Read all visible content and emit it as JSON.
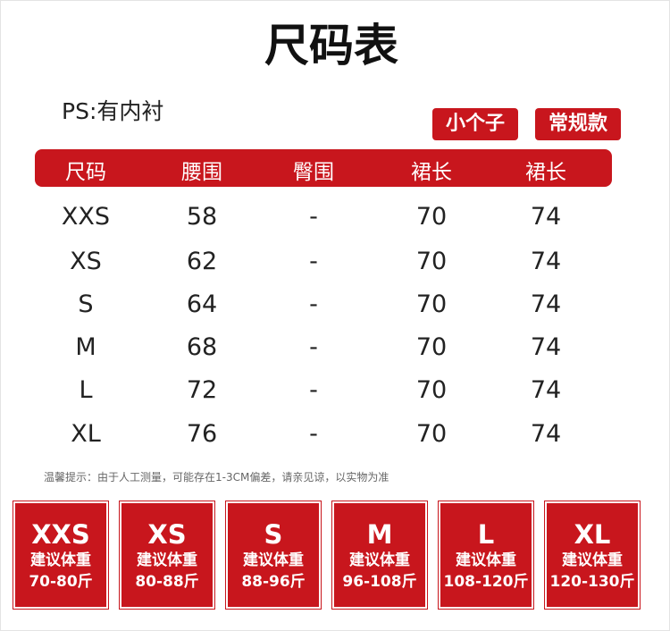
{
  "title": "尺码表",
  "note": "PS:有内衬",
  "tags": [
    "小个子",
    "常规款"
  ],
  "table": {
    "header": [
      "尺码",
      "腰围",
      "臀围",
      "裙长",
      "裙长"
    ],
    "rows": [
      [
        "XXS",
        "58",
        "-",
        "70",
        "74"
      ],
      [
        "XS",
        "62",
        "-",
        "70",
        "74"
      ],
      [
        "S",
        "64",
        "-",
        "70",
        "74"
      ],
      [
        "M",
        "68",
        "-",
        "70",
        "74"
      ],
      [
        "L",
        "72",
        "-",
        "70",
        "74"
      ],
      [
        "XL",
        "76",
        "-",
        "70",
        "74"
      ]
    ]
  },
  "footnote": "温馨提示：由于人工测量，可能存在1-3CM偏差，请亲见谅，以实物为准",
  "cards": [
    {
      "size": "XXS",
      "label": "建议体重",
      "range": "70-80斤"
    },
    {
      "size": "XS",
      "label": "建议体重",
      "range": "80-88斤"
    },
    {
      "size": "S",
      "label": "建议体重",
      "range": "88-96斤"
    },
    {
      "size": "M",
      "label": "建议体重",
      "range": "96-108斤"
    },
    {
      "size": "L",
      "label": "建议体重",
      "range": "108-120斤"
    },
    {
      "size": "XL",
      "label": "建议体重",
      "range": "120-130斤"
    }
  ]
}
